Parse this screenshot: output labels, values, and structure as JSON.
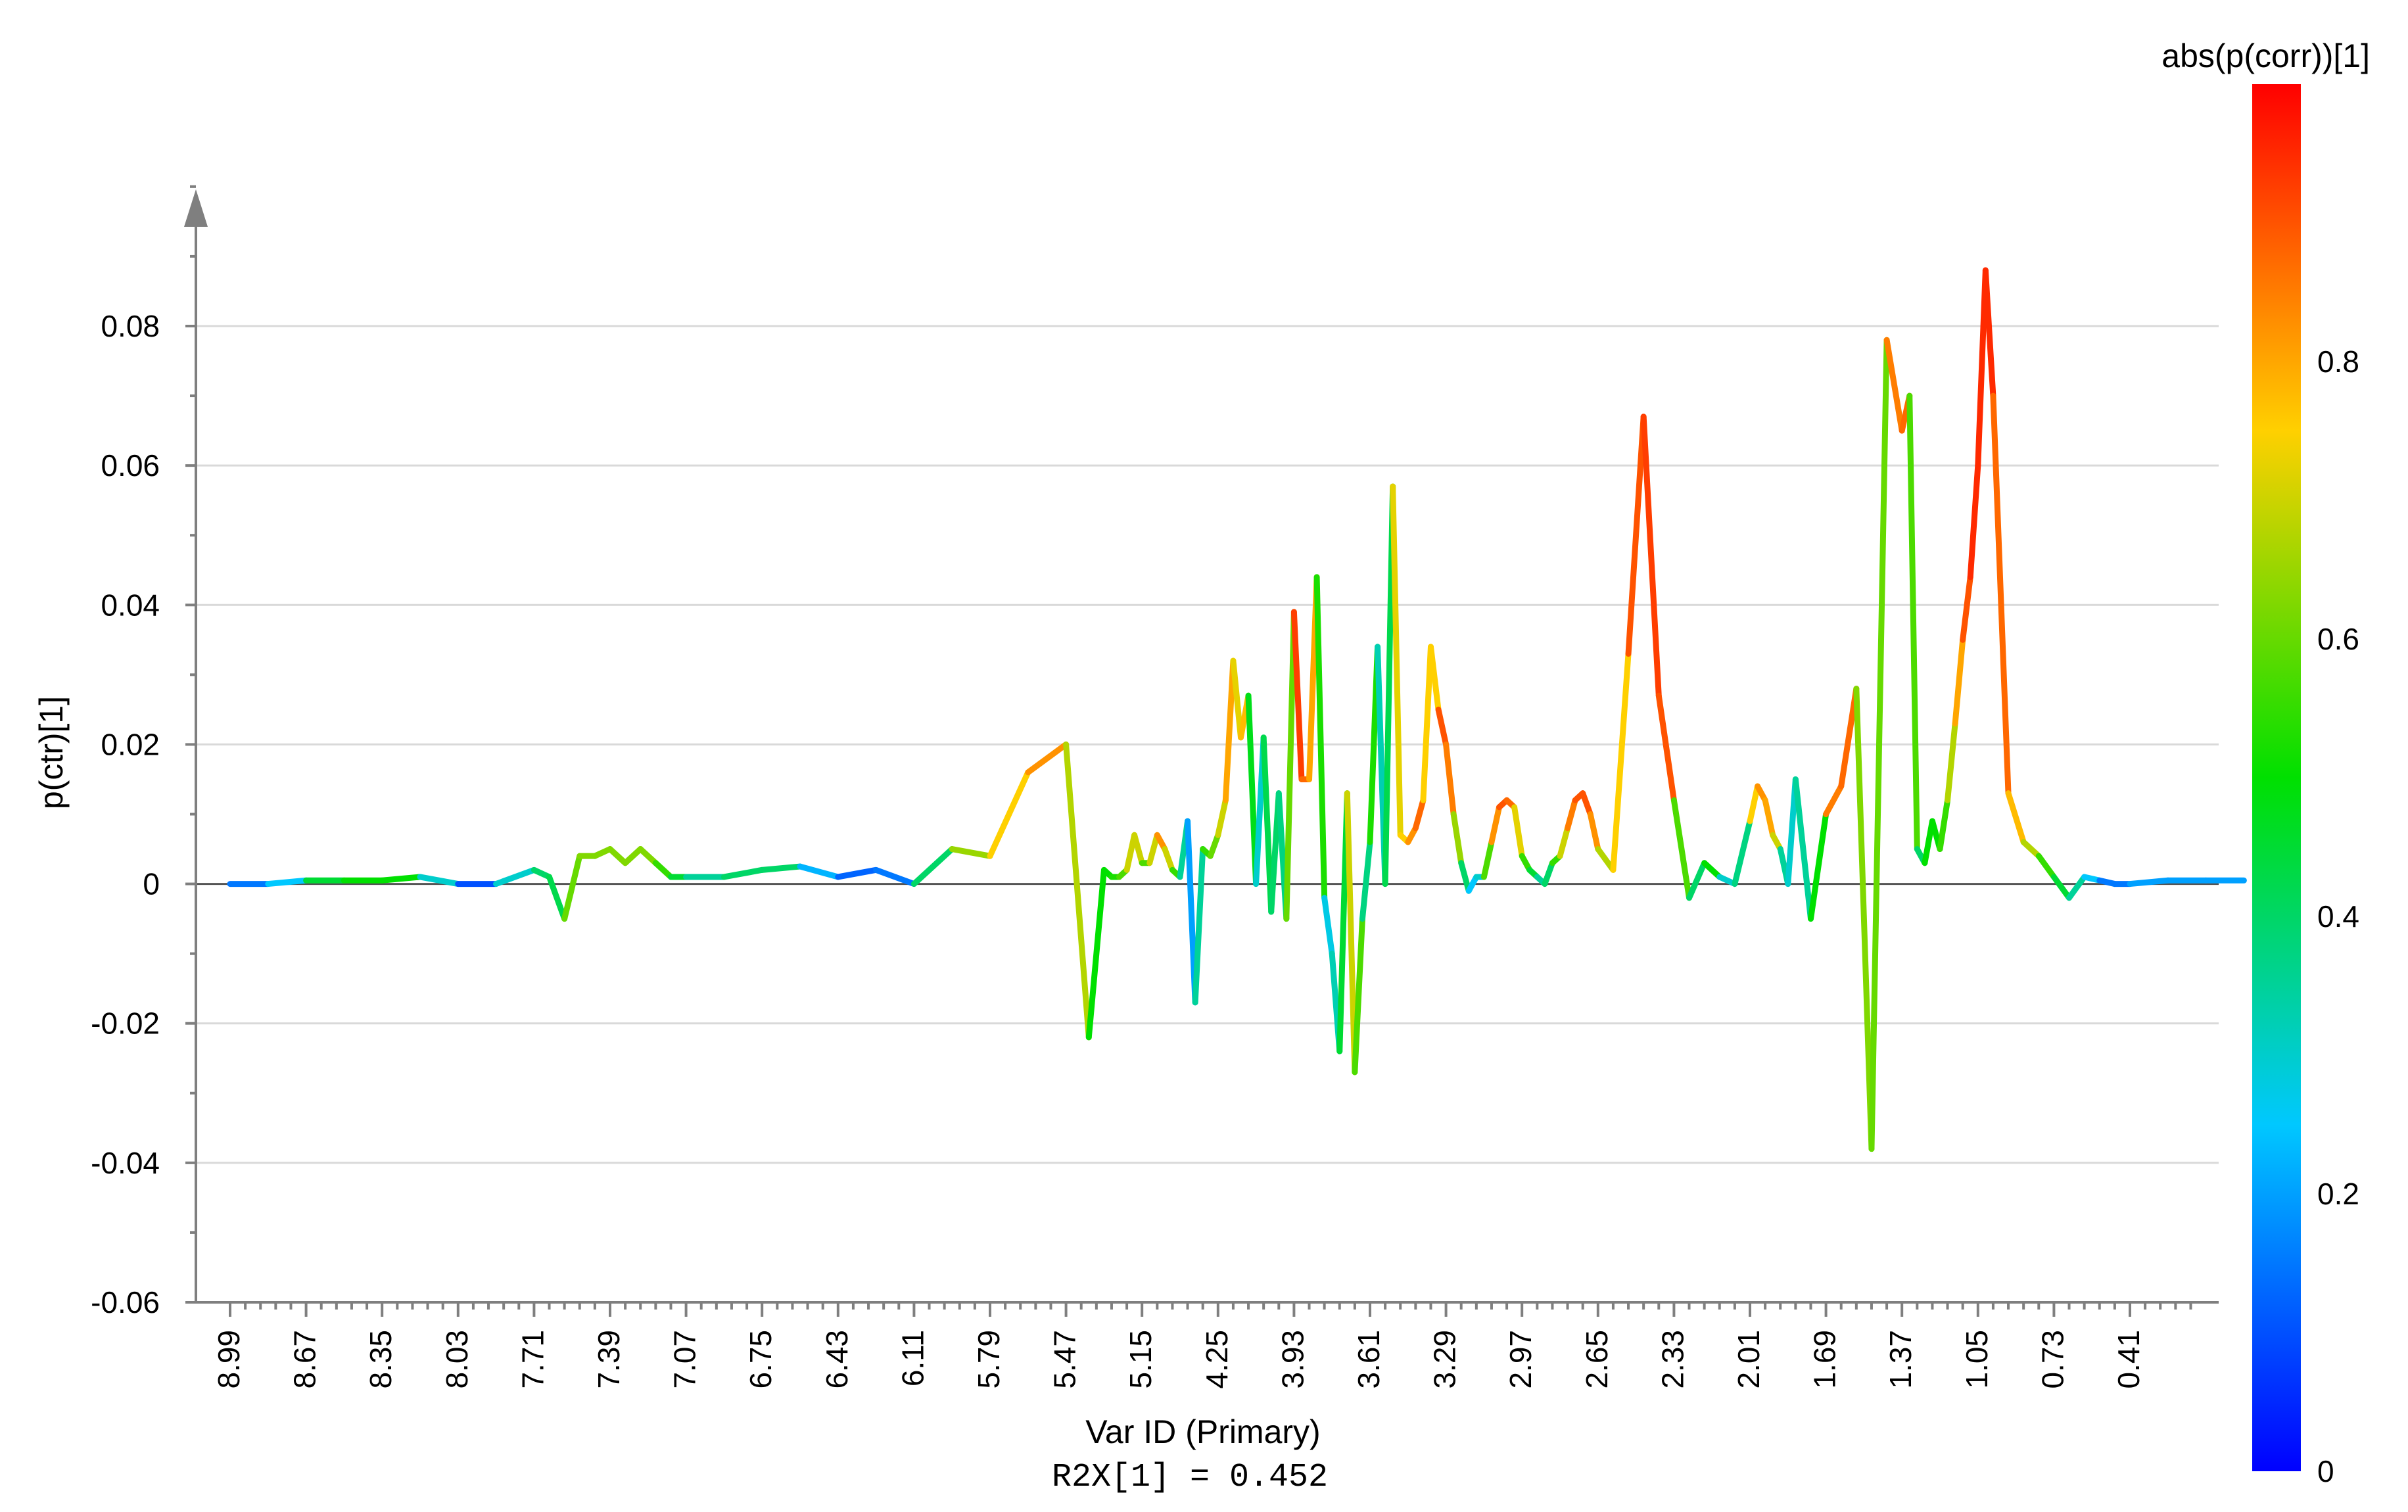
{
  "chart_data": {
    "type": "line",
    "ylabel": "p(ctr)[1]",
    "xlabel": "Var ID (Primary)",
    "footer": "R2X[1] = 0.452",
    "colorbar_title": "abs(p(corr))[1]",
    "ylim": [
      -0.06,
      0.095
    ],
    "xlim": [
      9.0,
      0.0
    ],
    "y_ticks": [
      0.08,
      0.06,
      0.04,
      0.02,
      0,
      -0.02,
      -0.04,
      -0.06
    ],
    "y_tick_labels": [
      "0.08",
      "0.06",
      "0.04",
      "0.02",
      "0",
      "-0.02",
      "-0.04",
      "-0.06"
    ],
    "x_tick_labels": [
      "8.99",
      "8.67",
      "8.35",
      "8.03",
      "7.71",
      "7.39",
      "7.07",
      "6.75",
      "6.43",
      "6.11",
      "5.79",
      "5.47",
      "5.15",
      "4.25",
      "3.93",
      "3.61",
      "3.29",
      "2.97",
      "2.65",
      "2.33",
      "2.01",
      "1.69",
      "1.37",
      "1.05",
      "0.73",
      "0.41"
    ],
    "colorbar_range": [
      0,
      1
    ],
    "colorbar_ticks": [
      0,
      0.2,
      0.4,
      0.6,
      0.8
    ],
    "colorbar_tick_labels": [
      "0",
      "0.2",
      "0.4",
      "0.6",
      "0.8"
    ],
    "grid": "horizontal",
    "colormap": [
      "#0000ff",
      "#00c8ff",
      "#00e000",
      "#ffd000",
      "#ff0000"
    ],
    "series": [
      {
        "x_index": [
          0,
          0.5,
          1,
          1.5,
          2,
          2.5,
          3,
          3.5,
          4,
          4.2,
          4.4,
          4.6,
          4.8,
          5,
          5.2,
          5.4,
          5.6,
          5.8,
          6,
          6.5,
          7,
          7.5,
          8,
          8.5,
          9,
          9.5,
          10,
          10.5,
          11,
          11.3,
          11.5,
          11.6,
          11.7,
          11.8,
          11.9,
          12.0,
          12.1,
          12.2,
          12.3,
          12.4,
          12.5,
          12.6,
          12.7,
          12.8,
          12.9,
          13.0,
          13.1,
          13.2,
          13.3,
          13.4,
          13.5,
          13.6,
          13.7,
          13.8,
          13.9,
          14.0,
          14.1,
          14.2,
          14.3,
          14.4,
          14.5,
          14.6,
          14.7,
          14.8,
          14.9,
          15.0,
          15.1,
          15.2,
          15.3,
          15.4,
          15.5,
          15.6,
          15.7,
          15.8,
          15.9,
          16.0,
          16.1,
          16.2,
          16.3,
          16.4,
          16.5,
          16.6,
          16.7,
          16.8,
          16.9,
          17.0,
          17.1,
          17.2,
          17.3,
          17.4,
          17.5,
          17.6,
          17.7,
          17.8,
          17.9,
          18.0,
          18.2,
          18.4,
          18.6,
          18.8,
          19.0,
          19.2,
          19.4,
          19.6,
          19.8,
          20.0,
          20.1,
          20.2,
          20.3,
          20.4,
          20.5,
          20.6,
          20.8,
          21.0,
          21.2,
          21.4,
          21.6,
          21.8,
          22.0,
          22.1,
          22.2,
          22.3,
          22.4,
          22.5,
          22.6,
          22.7,
          22.8,
          22.9,
          23.0,
          23.1,
          23.2,
          23.4,
          23.6,
          23.8,
          24.0,
          24.2,
          24.4,
          24.6,
          24.8,
          25.0,
          25.5,
          26.0,
          26.5
        ],
        "values": [
          0,
          0,
          0.0005,
          0.0005,
          0.0005,
          0.001,
          0,
          0,
          0.002,
          0.001,
          -0.005,
          0.004,
          0.004,
          0.005,
          0.003,
          0.005,
          0.003,
          0.001,
          0.001,
          0.001,
          0.002,
          0.0025,
          0.001,
          0.002,
          0,
          0.005,
          0.004,
          0.016,
          0.02,
          -0.022,
          0.002,
          0.001,
          0.001,
          0.002,
          0.007,
          0.003,
          0.003,
          0.007,
          0.005,
          0.002,
          0.001,
          0.009,
          -0.017,
          0.005,
          0.004,
          0.007,
          0.012,
          0.032,
          0.021,
          0.027,
          0,
          0.021,
          -0.004,
          0.013,
          -0.005,
          0.039,
          0.015,
          0.015,
          0.044,
          -0.002,
          -0.01,
          -0.024,
          0.013,
          -0.027,
          -0.005,
          0.006,
          0.034,
          0,
          0.057,
          0.007,
          0.006,
          0.008,
          0.012,
          0.034,
          0.025,
          0.02,
          0.01,
          0.003,
          -0.001,
          0.001,
          0.001,
          0.006,
          0.011,
          0.012,
          0.011,
          0.004,
          0.002,
          0.001,
          0,
          0.003,
          0.004,
          0.008,
          0.012,
          0.013,
          0.01,
          0.005,
          0.002,
          0.033,
          0.067,
          0.027,
          0.012,
          -0.002,
          0.003,
          0.001,
          0,
          0.009,
          0.014,
          0.012,
          0.007,
          0.005,
          0,
          0.015,
          -0.005,
          0.01,
          0.014,
          0.028,
          -0.038,
          0.078,
          0.065,
          0.07,
          0.005,
          0.003,
          0.009,
          0.005,
          0.012,
          0.023,
          0.035,
          0.044,
          0.06,
          0.088,
          0.07,
          0.013,
          0.006,
          0.004,
          0.001,
          -0.002,
          0.001,
          0.0005,
          0,
          0,
          0.0005,
          0.0005,
          0.0005
        ],
        "colors": [
          0.2,
          0.1,
          0.4,
          0.5,
          0.5,
          0.5,
          0.1,
          0.1,
          0.5,
          0.3,
          0.55,
          0.65,
          0.6,
          0.65,
          0.6,
          0.65,
          0.6,
          0.5,
          0.4,
          0.3,
          0.5,
          0.3,
          0.15,
          0.1,
          0.2,
          0.6,
          0.7,
          0.8,
          0.85,
          0.5,
          0.5,
          0.5,
          0.55,
          0.6,
          0.8,
          0.6,
          0.55,
          0.85,
          0.8,
          0.6,
          0.5,
          0.2,
          0.2,
          0.5,
          0.6,
          0.6,
          0.8,
          0.8,
          0.65,
          0.9,
          0.05,
          0.55,
          0.3,
          0.5,
          0.25,
          0.95,
          0.9,
          0.85,
          0.75,
          0.3,
          0.25,
          0.4,
          0.5,
          0.9,
          0.25,
          0.5,
          0.55,
          0.1,
          0.75,
          0.7,
          0.8,
          0.85,
          0.9,
          0.6,
          0.9,
          0.9,
          0.8,
          0.5,
          0.3,
          0.2,
          0.4,
          0.75,
          0.9,
          0.9,
          0.85,
          0.6,
          0.5,
          0.4,
          0.3,
          0.5,
          0.6,
          0.8,
          0.9,
          0.9,
          0.9,
          0.75,
          0.6,
          0.9,
          0.9,
          0.95,
          0.85,
          0.3,
          0.5,
          0.5,
          0.1,
          0.65,
          0.85,
          0.8,
          0.8,
          0.6,
          0.1,
          0.5,
          0.2,
          0.8,
          0.9,
          0.85,
          0.4,
          0.8,
          0.9,
          0.85,
          0.3,
          0.5,
          0.5,
          0.5,
          0.6,
          0.75,
          0.85,
          0.95,
          0.95,
          0.95,
          0.95,
          0.8,
          0.75,
          0.6,
          0.5,
          0.4,
          0.3,
          0.2,
          0.1,
          0.2,
          0.2,
          0.2,
          0.2
        ]
      }
    ]
  }
}
